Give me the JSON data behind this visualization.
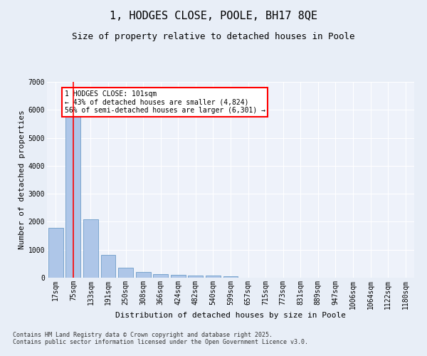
{
  "title": "1, HODGES CLOSE, POOLE, BH17 8QE",
  "subtitle": "Size of property relative to detached houses in Poole",
  "xlabel": "Distribution of detached houses by size in Poole",
  "ylabel": "Number of detached properties",
  "categories": [
    "17sqm",
    "75sqm",
    "133sqm",
    "191sqm",
    "250sqm",
    "308sqm",
    "366sqm",
    "424sqm",
    "482sqm",
    "540sqm",
    "599sqm",
    "657sqm",
    "715sqm",
    "773sqm",
    "831sqm",
    "889sqm",
    "947sqm",
    "1006sqm",
    "1064sqm",
    "1122sqm",
    "1180sqm"
  ],
  "values": [
    1780,
    5820,
    2090,
    820,
    360,
    210,
    120,
    95,
    80,
    65,
    55,
    0,
    0,
    0,
    0,
    0,
    0,
    0,
    0,
    0,
    0
  ],
  "bar_color": "#aec6e8",
  "bar_edge_color": "#5a8fc0",
  "vline_x": 1,
  "vline_color": "red",
  "annotation_text": "1 HODGES CLOSE: 101sqm\n← 43% of detached houses are smaller (4,824)\n56% of semi-detached houses are larger (6,301) →",
  "annotation_box_color": "red",
  "annotation_box_facecolor": "white",
  "ylim": [
    0,
    7000
  ],
  "yticks": [
    0,
    1000,
    2000,
    3000,
    4000,
    5000,
    6000,
    7000
  ],
  "bg_color": "#e8eef7",
  "plot_bg_color": "#eef2fa",
  "grid_color": "#ffffff",
  "footer": "Contains HM Land Registry data © Crown copyright and database right 2025.\nContains public sector information licensed under the Open Government Licence v3.0.",
  "title_fontsize": 11,
  "subtitle_fontsize": 9,
  "xlabel_fontsize": 8,
  "ylabel_fontsize": 8,
  "tick_fontsize": 7,
  "footer_fontsize": 6,
  "annotation_fontsize": 7
}
